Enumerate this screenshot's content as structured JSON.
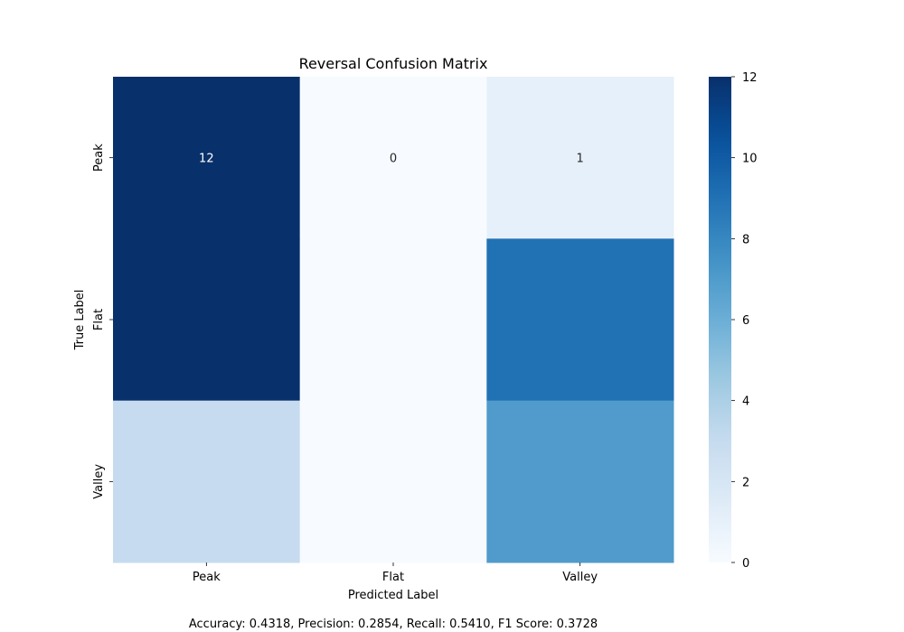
{
  "chart_data": {
    "type": "heatmap",
    "title": "Reversal Confusion Matrix",
    "xlabel": "Predicted Label",
    "ylabel": "True Label",
    "x_categories": [
      "Peak",
      "Flat",
      "Valley"
    ],
    "y_categories": [
      "Peak",
      "Flat",
      "Valley"
    ],
    "values": [
      [
        12,
        0,
        1
      ],
      [
        12,
        0,
        9
      ],
      [
        3,
        0,
        7
      ]
    ],
    "annotated_cells": [
      [
        0,
        0
      ],
      [
        0,
        1
      ],
      [
        0,
        2
      ]
    ],
    "colormap": "Blues",
    "color_range": [
      0,
      12
    ],
    "colorbar_ticks": [
      0,
      2,
      4,
      6,
      8,
      10,
      12
    ],
    "grid": false
  },
  "footer": "Accuracy: 0.4318, Precision: 0.2854, Recall: 0.5410, F1 Score: 0.3728"
}
